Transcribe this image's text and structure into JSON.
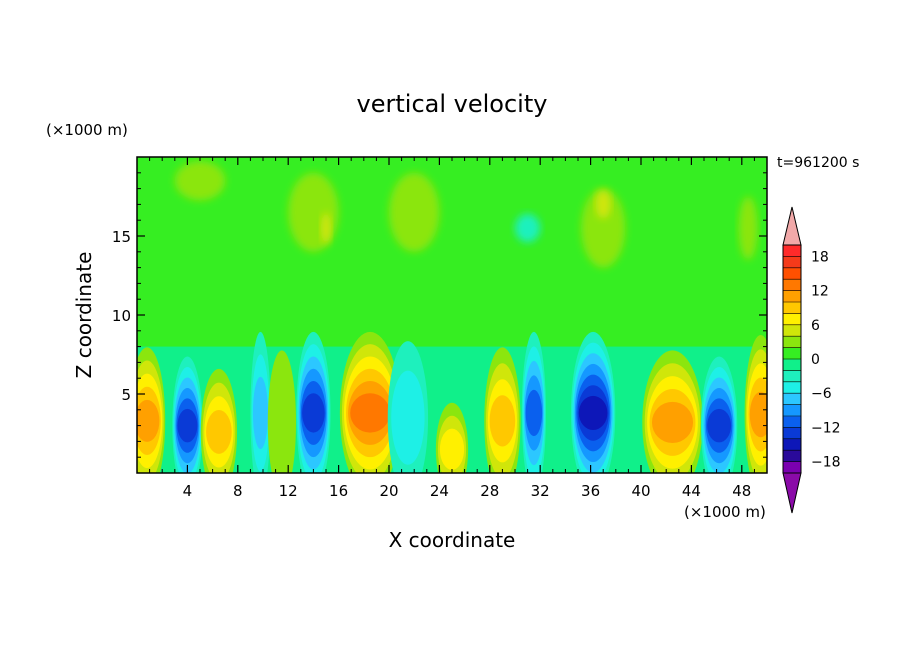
{
  "chart_data": {
    "type": "heatmap",
    "title": "vertical velocity",
    "xlabel": "X coordinate",
    "ylabel": "Z coordinate",
    "x_unit": "(×1000 m)",
    "y_unit": "(×1000 m)",
    "time_label": "t=961200 s",
    "xlim": [
      0,
      50
    ],
    "ylim": [
      0,
      20
    ],
    "x_ticks": [
      4,
      8,
      12,
      16,
      20,
      24,
      28,
      32,
      36,
      40,
      44,
      48
    ],
    "y_ticks": [
      5,
      10,
      15
    ],
    "colorbar": {
      "levels": [
        -20,
        -18,
        -16,
        -14,
        -12,
        -10,
        -8,
        -6,
        -4,
        -2,
        0,
        2,
        4,
        6,
        8,
        10,
        12,
        14,
        16,
        18,
        20
      ],
      "tick_labels": [
        18,
        12,
        6,
        0,
        -6,
        -12,
        -18
      ],
      "colors": [
        "#7a00b0",
        "#2a0a9a",
        "#0d17b8",
        "#0a3ad6",
        "#0a60ee",
        "#1598ff",
        "#2cc7ff",
        "#1ef0e6",
        "#1ef0bd",
        "#10f08a",
        "#36ee22",
        "#8be60e",
        "#d0e60a",
        "#fff000",
        "#ffc800",
        "#ffa000",
        "#ff7800",
        "#ff5000",
        "#f53a1a",
        "#ff2a2a"
      ],
      "over_color": "#f2a9a9",
      "under_color": "#8a0aa8"
    },
    "low_level_cells": [
      {
        "x": 0.8,
        "z": 3.3,
        "w": 0.9,
        "peak": 11
      },
      {
        "x": 4.0,
        "z": 3.0,
        "w": 0.75,
        "peak": -13
      },
      {
        "x": 6.5,
        "z": 2.6,
        "w": 0.9,
        "peak": 9
      },
      {
        "x": 9.8,
        "z": 3.8,
        "w": 0.5,
        "peak": -6
      },
      {
        "x": 11.5,
        "z": 3.2,
        "w": 0.7,
        "peak": 3
      },
      {
        "x": 14.0,
        "z": 3.8,
        "w": 0.85,
        "peak": -13
      },
      {
        "x": 18.5,
        "z": 3.8,
        "w": 1.5,
        "peak": 12
      },
      {
        "x": 21.5,
        "z": 3.5,
        "w": 1.0,
        "peak": -5
      },
      {
        "x": 25.0,
        "z": 1.5,
        "w": 0.8,
        "peak": 6
      },
      {
        "x": 29.0,
        "z": 3.3,
        "w": 0.9,
        "peak": 9
      },
      {
        "x": 31.5,
        "z": 3.8,
        "w": 0.6,
        "peak": -10
      },
      {
        "x": 36.2,
        "z": 3.8,
        "w": 1.1,
        "peak": -15
      },
      {
        "x": 42.5,
        "z": 3.2,
        "w": 1.5,
        "peak": 11
      },
      {
        "x": 46.2,
        "z": 3.0,
        "w": 0.9,
        "peak": -13
      },
      {
        "x": 49.5,
        "z": 3.7,
        "w": 0.8,
        "peak": 11
      }
    ],
    "upper_regions": [
      {
        "x": 5.0,
        "z": 18.5,
        "w": 4.0,
        "h": 2.5,
        "value": 2
      },
      {
        "x": 14.0,
        "z": 16.5,
        "w": 4.0,
        "h": 5.0,
        "value": 2
      },
      {
        "x": 22.0,
        "z": 16.5,
        "w": 4.0,
        "h": 5.0,
        "value": 2
      },
      {
        "x": 37.0,
        "z": 15.5,
        "w": 3.5,
        "h": 5.0,
        "value": 2
      },
      {
        "x": 15.0,
        "z": 15.5,
        "w": 0.8,
        "h": 2.0,
        "value": 4
      },
      {
        "x": 37.0,
        "z": 17.0,
        "w": 1.2,
        "h": 1.8,
        "value": 4
      },
      {
        "x": 31.0,
        "z": 15.5,
        "w": 2.0,
        "h": 1.8,
        "value": -3
      },
      {
        "x": 48.5,
        "z": 15.5,
        "w": 1.5,
        "h": 4.0,
        "value": 2
      }
    ]
  }
}
